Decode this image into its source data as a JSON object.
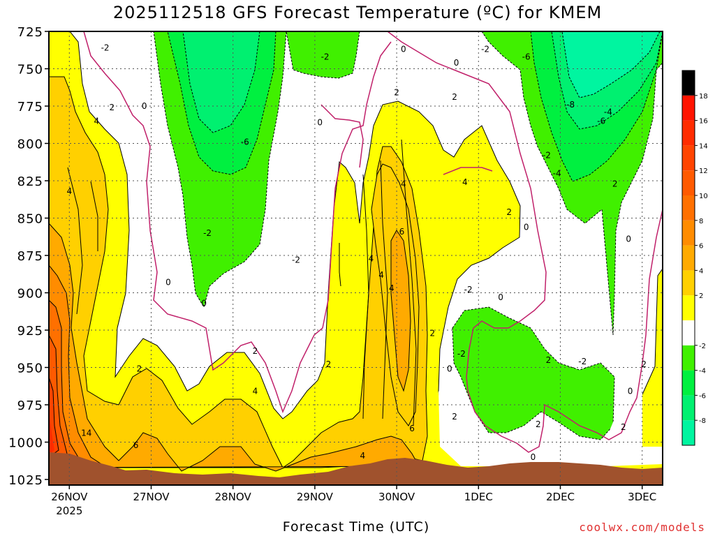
{
  "chart_data": {
    "type": "heatmap",
    "title": "2025112518 GFS Forecast Temperature (ºC) for KMEM",
    "xlabel": "Forecast Time (UTC)",
    "ylabel": "",
    "y_ticks": [
      725,
      750,
      775,
      800,
      825,
      850,
      875,
      900,
      925,
      950,
      975,
      1000,
      1025
    ],
    "ylim": [
      1025,
      725
    ],
    "y_inverted": true,
    "x_ticks": [
      {
        "label": "26NOV",
        "sublabel": "2025",
        "t": 0
      },
      {
        "label": "27NOV",
        "sublabel": "",
        "t": 24
      },
      {
        "label": "28NOV",
        "sublabel": "",
        "t": 48
      },
      {
        "label": "29NOV",
        "sublabel": "",
        "t": 72
      },
      {
        "label": "30NOV",
        "sublabel": "",
        "t": 96
      },
      {
        "label": "1DEC",
        "sublabel": "",
        "t": 120
      },
      {
        "label": "2DEC",
        "sublabel": "",
        "t": 144
      },
      {
        "label": "3DEC",
        "sublabel": "",
        "t": 168
      }
    ],
    "xlim": [
      -6,
      174
    ],
    "grid": true,
    "colorbar": {
      "levels": [
        -10,
        -8,
        -6,
        -4,
        -2,
        0,
        2,
        4,
        6,
        8,
        10,
        12,
        14,
        16,
        18,
        20
      ],
      "tick_labels": [
        "-8",
        "-6",
        "-4",
        "-2",
        "2",
        "4",
        "6",
        "8",
        "10",
        "12",
        "14",
        "16",
        "18"
      ],
      "tick_values": [
        -8,
        -6,
        -4,
        -2,
        2,
        4,
        6,
        8,
        10,
        12,
        14,
        16,
        18
      ],
      "colors": [
        "#00f5a0",
        "#00f070",
        "#00f040",
        "#40f000",
        "#ffffff",
        "#ffff00",
        "#ffd000",
        "#ffaa00",
        "#ff8c00",
        "#ff7000",
        "#ff5a00",
        "#ff4400",
        "#ff2c00",
        "#ff1400"
      ]
    },
    "bins": [
      {
        "range": [
          -10,
          -8
        ],
        "color": "#00f5a0"
      },
      {
        "range": [
          -8,
          -6
        ],
        "color": "#00f070"
      },
      {
        "range": [
          -6,
          -4
        ],
        "color": "#00f040"
      },
      {
        "range": [
          -4,
          -2
        ],
        "color": "#40f000"
      },
      {
        "range": [
          -2,
          2
        ],
        "color": "#ffffff"
      },
      {
        "range": [
          2,
          4
        ],
        "color": "#ffff00"
      },
      {
        "range": [
          4,
          6
        ],
        "color": "#ffd000"
      },
      {
        "range": [
          6,
          8
        ],
        "color": "#ffaa00"
      },
      {
        "range": [
          8,
          10
        ],
        "color": "#ff8c00"
      },
      {
        "range": [
          10,
          12
        ],
        "color": "#ff7000"
      },
      {
        "range": [
          12,
          14
        ],
        "color": "#ff5a00"
      },
      {
        "range": [
          14,
          16
        ],
        "color": "#ff4400"
      },
      {
        "range": [
          16,
          18
        ],
        "color": "#ff2c00"
      },
      {
        "range": [
          18,
          20
        ],
        "color": "#ff1400"
      }
    ],
    "surface_color": "#a0522d",
    "zero_contour_color": "#c0206a",
    "contour_color": "#000000",
    "contour_labels": [
      {
        "text": "-2",
        "t": 10.5,
        "p": 736
      },
      {
        "text": "-2",
        "t": 75,
        "p": 742
      },
      {
        "text": "0",
        "t": 98,
        "p": 737
      },
      {
        "text": "0",
        "t": 113.5,
        "p": 746
      },
      {
        "text": "-2",
        "t": 122,
        "p": 737
      },
      {
        "text": "-6",
        "t": 134,
        "p": 742
      },
      {
        "text": "2",
        "t": 96,
        "p": 766
      },
      {
        "text": "2",
        "t": 113,
        "p": 769
      },
      {
        "text": "-8",
        "t": 147,
        "p": 774
      },
      {
        "text": "-4",
        "t": 158,
        "p": 779
      },
      {
        "text": "-6",
        "t": 156,
        "p": 785
      },
      {
        "text": "2",
        "t": 12.5,
        "p": 776
      },
      {
        "text": "0",
        "t": 22,
        "p": 775
      },
      {
        "text": "4",
        "t": 8,
        "p": 785
      },
      {
        "text": "0",
        "t": 73.5,
        "p": 786
      },
      {
        "text": "-6",
        "t": 51.5,
        "p": 799
      },
      {
        "text": "-2",
        "t": 140,
        "p": 808
      },
      {
        "text": "-4",
        "t": 143,
        "p": 820
      },
      {
        "text": "2",
        "t": 160,
        "p": 827
      },
      {
        "text": "4",
        "t": 116,
        "p": 826
      },
      {
        "text": "4",
        "t": 98,
        "p": 827
      },
      {
        "text": "4",
        "t": 0,
        "p": 832
      },
      {
        "text": "2",
        "t": 129,
        "p": 846
      },
      {
        "text": "0",
        "t": 134,
        "p": 856
      },
      {
        "text": "6",
        "t": 97.5,
        "p": 859
      },
      {
        "text": "-2",
        "t": 40.5,
        "p": 860
      },
      {
        "text": "0",
        "t": 164,
        "p": 864
      },
      {
        "text": "-2",
        "t": 66.5,
        "p": 878
      },
      {
        "text": "4",
        "t": 88.5,
        "p": 877
      },
      {
        "text": "4",
        "t": 91.5,
        "p": 888
      },
      {
        "text": "0",
        "t": 29,
        "p": 893
      },
      {
        "text": "4",
        "t": 94.5,
        "p": 897
      },
      {
        "text": "-2",
        "t": 117,
        "p": 898
      },
      {
        "text": "0",
        "t": 126.5,
        "p": 903
      },
      {
        "text": "0",
        "t": 39.5,
        "p": 907
      },
      {
        "text": "2",
        "t": 106.5,
        "p": 927
      },
      {
        "text": "2",
        "t": 54.5,
        "p": 939
      },
      {
        "text": "-2",
        "t": 115,
        "p": 941
      },
      {
        "text": "2",
        "t": 140.5,
        "p": 945
      },
      {
        "text": "-2",
        "t": 150.5,
        "p": 946
      },
      {
        "text": "2",
        "t": 20.5,
        "p": 951
      },
      {
        "text": "2",
        "t": 76,
        "p": 948
      },
      {
        "text": "0",
        "t": 111.5,
        "p": 951
      },
      {
        "text": "2",
        "t": 168.5,
        "p": 948
      },
      {
        "text": "4",
        "t": 54.5,
        "p": 966
      },
      {
        "text": "0",
        "t": 164.5,
        "p": 966
      },
      {
        "text": "2",
        "t": 113,
        "p": 983
      },
      {
        "text": "2",
        "t": 137.5,
        "p": 988
      },
      {
        "text": "14",
        "t": 5,
        "p": 994
      },
      {
        "text": "6",
        "t": 100.5,
        "p": 991
      },
      {
        "text": "6",
        "t": 19.5,
        "p": 1002
      },
      {
        "text": "2",
        "t": 162.5,
        "p": 990
      },
      {
        "text": "4",
        "t": 86,
        "p": 1009
      },
      {
        "text": "0",
        "t": 136,
        "p": 1010
      }
    ]
  },
  "credit": "coolwx.com/models"
}
